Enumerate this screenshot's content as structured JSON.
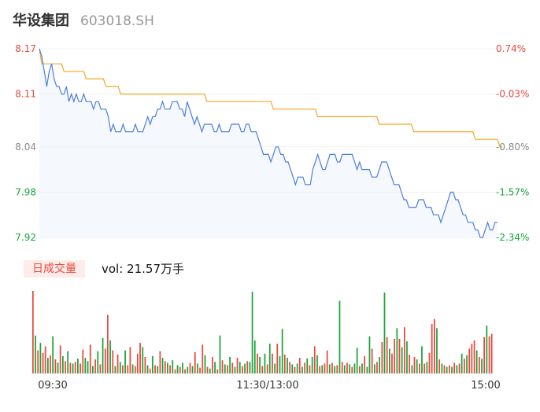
{
  "header": {
    "stock_name": "华设集团",
    "stock_code": "603018.SH"
  },
  "volume_panel": {
    "tab_label": "日成交量",
    "readout": "vol: 21.57万手"
  },
  "colors": {
    "price_line": "#4a7fe0",
    "avg_line": "#f5a623",
    "up": "#e8483b",
    "down": "#1aa33a",
    "area_fill": "#eef3fb"
  },
  "chart_data": {
    "type": "line",
    "prev_close": 8.11,
    "y_ticks": [
      "8.17",
      "8.11",
      "8.04",
      "7.98",
      "7.92"
    ],
    "y_tick_values": [
      8.17,
      8.11,
      8.04,
      7.98,
      7.92
    ],
    "pct_ticks": [
      "0.74%",
      "-0.03%",
      "-0.80%",
      "-1.57%",
      "-2.34%"
    ],
    "x_ticks": [
      "09:30",
      "11:30/13:00",
      "15:00"
    ],
    "ylim": [
      7.92,
      8.17
    ],
    "series": [
      {
        "values": [
          8.17,
          8.16,
          8.14,
          8.12,
          8.14,
          8.15,
          8.13,
          8.12,
          8.12,
          8.11,
          8.11,
          8.12,
          8.1,
          8.11,
          8.1,
          8.11,
          8.1,
          8.1,
          8.11,
          8.1,
          8.1,
          8.1,
          8.09,
          8.1,
          8.1,
          8.09,
          8.09,
          8.09,
          8.08,
          8.06,
          8.07,
          8.06,
          8.06,
          8.06,
          8.07,
          8.06,
          8.06,
          8.06,
          8.06,
          8.07,
          8.06,
          8.06,
          8.06,
          8.07,
          8.08,
          8.07,
          8.08,
          8.08,
          8.09,
          8.09,
          8.1,
          8.09,
          8.09,
          8.09,
          8.1,
          8.1,
          8.1,
          8.09,
          8.09,
          8.08,
          8.1,
          8.09,
          8.08,
          8.07,
          8.08,
          8.07,
          8.06,
          8.07,
          8.07,
          8.07,
          8.07,
          8.06,
          8.06,
          8.07,
          8.06,
          8.06,
          8.06,
          8.06,
          8.07,
          8.07,
          8.07,
          8.07,
          8.06,
          8.06,
          8.07,
          8.07,
          8.06,
          8.06,
          8.06,
          8.05,
          8.04,
          8.03,
          8.03,
          8.03,
          8.02,
          8.03,
          8.04,
          8.04,
          8.03,
          8.03,
          8.02,
          8.02,
          8.01,
          8.0,
          7.99,
          8.0,
          8.0,
          8.0,
          7.99,
          7.99,
          7.99,
          8.01,
          8.02,
          8.03,
          8.02,
          8.01,
          8.01,
          8.02,
          8.03,
          8.03,
          8.03,
          8.02,
          8.02,
          8.03,
          8.03,
          8.03,
          8.03,
          8.03,
          8.02,
          8.01,
          8.02,
          8.01,
          8.01,
          8.01,
          8.01,
          8.0,
          8.0,
          8.0,
          8.01,
          8.02,
          8.02,
          8.02,
          8.01,
          8.0,
          7.99,
          7.99,
          7.99,
          7.98,
          7.97,
          7.97,
          7.96,
          7.96,
          7.96,
          7.96,
          7.97,
          7.97,
          7.97,
          7.96,
          7.96,
          7.96,
          7.95,
          7.95,
          7.95,
          7.94,
          7.95,
          7.96,
          7.97,
          7.98,
          7.98,
          7.97,
          7.97,
          7.96,
          7.95,
          7.95,
          7.94,
          7.94,
          7.94,
          7.93,
          7.93,
          7.92,
          7.92,
          7.93,
          7.94,
          7.93,
          7.93,
          7.94,
          7.94
        ]
      },
      {
        "values": [
          8.17,
          8.15,
          8.15,
          8.15,
          8.15,
          8.15,
          8.15,
          8.15,
          8.15,
          8.15,
          8.14,
          8.14,
          8.14,
          8.14,
          8.14,
          8.14,
          8.14,
          8.14,
          8.14,
          8.13,
          8.13,
          8.13,
          8.13,
          8.13,
          8.13,
          8.13,
          8.13,
          8.12,
          8.12,
          8.12,
          8.12,
          8.12,
          8.12,
          8.11,
          8.11,
          8.11,
          8.11,
          8.11,
          8.11,
          8.11,
          8.11,
          8.11,
          8.11,
          8.11,
          8.11,
          8.11,
          8.11,
          8.11,
          8.11,
          8.11,
          8.11,
          8.11,
          8.11,
          8.11,
          8.11,
          8.11,
          8.11,
          8.11,
          8.11,
          8.11,
          8.11,
          8.11,
          8.11,
          8.11,
          8.11,
          8.11,
          8.11,
          8.11,
          8.1,
          8.1,
          8.1,
          8.1,
          8.1,
          8.1,
          8.1,
          8.1,
          8.1,
          8.1,
          8.1,
          8.1,
          8.1,
          8.1,
          8.1,
          8.1,
          8.1,
          8.1,
          8.1,
          8.1,
          8.1,
          8.1,
          8.1,
          8.1,
          8.1,
          8.1,
          8.1,
          8.09,
          8.09,
          8.09,
          8.09,
          8.09,
          8.09,
          8.09,
          8.09,
          8.09,
          8.09,
          8.09,
          8.09,
          8.09,
          8.09,
          8.09,
          8.09,
          8.09,
          8.09,
          8.08,
          8.08,
          8.08,
          8.08,
          8.08,
          8.08,
          8.08,
          8.08,
          8.08,
          8.08,
          8.08,
          8.08,
          8.08,
          8.08,
          8.08,
          8.08,
          8.08,
          8.08,
          8.08,
          8.08,
          8.08,
          8.08,
          8.08,
          8.08,
          8.08,
          8.07,
          8.07,
          8.07,
          8.07,
          8.07,
          8.07,
          8.07,
          8.07,
          8.07,
          8.07,
          8.07,
          8.07,
          8.07,
          8.07,
          8.06,
          8.06,
          8.06,
          8.06,
          8.06,
          8.06,
          8.06,
          8.06,
          8.06,
          8.06,
          8.06,
          8.06,
          8.06,
          8.06,
          8.06,
          8.06,
          8.06,
          8.06,
          8.06,
          8.06,
          8.06,
          8.06,
          8.06,
          8.06,
          8.06,
          8.05,
          8.05,
          8.05,
          8.05,
          8.05,
          8.05,
          8.05,
          8.05,
          8.05,
          8.05,
          8.04,
          8.04
        ]
      }
    ],
    "volume_bars": [
      {
        "v": 100,
        "up": true
      },
      {
        "v": 46,
        "up": false
      },
      {
        "v": 28,
        "up": true
      },
      {
        "v": 37,
        "up": false
      },
      {
        "v": 25,
        "up": true
      },
      {
        "v": 33,
        "up": true
      },
      {
        "v": 19,
        "up": false
      },
      {
        "v": 22,
        "up": true
      },
      {
        "v": 45,
        "up": false
      },
      {
        "v": 17,
        "up": true
      },
      {
        "v": 13,
        "up": false
      },
      {
        "v": 34,
        "up": true
      },
      {
        "v": 21,
        "up": false
      },
      {
        "v": 15,
        "up": true
      },
      {
        "v": 27,
        "up": false
      },
      {
        "v": 13,
        "up": true
      },
      {
        "v": 12,
        "up": false
      },
      {
        "v": 14,
        "up": true
      },
      {
        "v": 18,
        "up": false
      },
      {
        "v": 12,
        "up": true
      },
      {
        "v": 29,
        "up": true
      },
      {
        "v": 19,
        "up": false
      },
      {
        "v": 15,
        "up": false
      },
      {
        "v": 35,
        "up": true
      },
      {
        "v": 9,
        "up": false
      },
      {
        "v": 17,
        "up": true
      },
      {
        "v": 27,
        "up": false
      },
      {
        "v": 11,
        "up": true
      },
      {
        "v": 43,
        "up": false
      },
      {
        "v": 30,
        "up": true
      },
      {
        "v": 71,
        "up": true
      },
      {
        "v": 40,
        "up": false
      },
      {
        "v": 28,
        "up": true
      },
      {
        "v": 9,
        "up": false
      },
      {
        "v": 23,
        "up": true
      },
      {
        "v": 14,
        "up": false
      },
      {
        "v": 10,
        "up": true
      },
      {
        "v": 28,
        "up": false
      },
      {
        "v": 10,
        "up": true
      },
      {
        "v": 32,
        "up": true
      },
      {
        "v": 11,
        "up": false
      },
      {
        "v": 9,
        "up": true
      },
      {
        "v": 24,
        "up": true
      },
      {
        "v": 37,
        "up": true
      },
      {
        "v": 32,
        "up": false
      },
      {
        "v": 20,
        "up": true
      },
      {
        "v": 10,
        "up": false
      },
      {
        "v": 6,
        "up": true
      },
      {
        "v": 21,
        "up": false
      },
      {
        "v": 10,
        "up": true
      },
      {
        "v": 9,
        "up": false
      },
      {
        "v": 27,
        "up": true
      },
      {
        "v": 19,
        "up": false
      },
      {
        "v": 15,
        "up": true
      },
      {
        "v": 13,
        "up": false
      },
      {
        "v": 10,
        "up": true
      },
      {
        "v": 16,
        "up": false
      },
      {
        "v": 5,
        "up": true
      },
      {
        "v": 10,
        "up": false
      },
      {
        "v": 8,
        "up": true
      },
      {
        "v": 13,
        "up": false
      },
      {
        "v": 5,
        "up": true
      },
      {
        "v": 8,
        "up": false
      },
      {
        "v": 13,
        "up": true
      },
      {
        "v": 9,
        "up": false
      },
      {
        "v": 26,
        "up": true
      },
      {
        "v": 12,
        "up": false
      },
      {
        "v": 7,
        "up": true
      },
      {
        "v": 35,
        "up": true
      },
      {
        "v": 22,
        "up": false
      },
      {
        "v": 8,
        "up": true
      },
      {
        "v": 6,
        "up": false
      },
      {
        "v": 20,
        "up": true
      },
      {
        "v": 14,
        "up": false
      },
      {
        "v": 5,
        "up": true
      },
      {
        "v": 46,
        "up": false
      },
      {
        "v": 16,
        "up": true
      },
      {
        "v": 11,
        "up": false
      },
      {
        "v": 10,
        "up": true
      },
      {
        "v": 20,
        "up": false
      },
      {
        "v": 13,
        "up": true
      },
      {
        "v": 8,
        "up": false
      },
      {
        "v": 19,
        "up": true
      },
      {
        "v": 14,
        "up": false
      },
      {
        "v": 9,
        "up": true
      },
      {
        "v": 12,
        "up": false
      },
      {
        "v": 15,
        "up": true
      },
      {
        "v": 14,
        "up": false
      },
      {
        "v": 99,
        "up": false
      },
      {
        "v": 40,
        "up": false
      },
      {
        "v": 24,
        "up": true
      },
      {
        "v": 20,
        "up": false
      },
      {
        "v": 9,
        "up": true
      },
      {
        "v": 24,
        "up": false
      },
      {
        "v": 11,
        "up": true
      },
      {
        "v": 36,
        "up": false
      },
      {
        "v": 24,
        "up": true
      },
      {
        "v": 12,
        "up": false
      },
      {
        "v": 36,
        "up": true
      },
      {
        "v": 21,
        "up": false
      },
      {
        "v": 54,
        "up": false
      },
      {
        "v": 23,
        "up": true
      },
      {
        "v": 19,
        "up": false
      },
      {
        "v": 14,
        "up": true
      },
      {
        "v": 11,
        "up": false
      },
      {
        "v": 8,
        "up": true
      },
      {
        "v": 12,
        "up": false
      },
      {
        "v": 19,
        "up": true
      },
      {
        "v": 8,
        "up": false
      },
      {
        "v": 13,
        "up": true
      },
      {
        "v": 18,
        "up": false
      },
      {
        "v": 10,
        "up": true
      },
      {
        "v": 20,
        "up": false
      },
      {
        "v": 33,
        "up": true
      },
      {
        "v": 22,
        "up": false
      },
      {
        "v": 9,
        "up": true
      },
      {
        "v": 10,
        "up": false
      },
      {
        "v": 12,
        "up": true
      },
      {
        "v": 28,
        "up": true
      },
      {
        "v": 11,
        "up": false
      },
      {
        "v": 13,
        "up": true
      },
      {
        "v": 9,
        "up": false
      },
      {
        "v": 10,
        "up": true
      },
      {
        "v": 88,
        "up": false
      },
      {
        "v": 14,
        "up": true
      },
      {
        "v": 10,
        "up": false
      },
      {
        "v": 13,
        "up": true
      },
      {
        "v": 11,
        "up": false
      },
      {
        "v": 8,
        "up": true
      },
      {
        "v": 12,
        "up": false
      },
      {
        "v": 31,
        "up": false
      },
      {
        "v": 9,
        "up": true
      },
      {
        "v": 12,
        "up": false
      },
      {
        "v": 21,
        "up": true
      },
      {
        "v": 8,
        "up": false
      },
      {
        "v": 45,
        "up": false
      },
      {
        "v": 30,
        "up": true
      },
      {
        "v": 11,
        "up": false
      },
      {
        "v": 14,
        "up": true
      },
      {
        "v": 20,
        "up": false
      },
      {
        "v": 38,
        "up": true
      },
      {
        "v": 98,
        "up": false
      },
      {
        "v": 44,
        "up": true
      },
      {
        "v": 30,
        "up": false
      },
      {
        "v": 24,
        "up": true
      },
      {
        "v": 42,
        "up": true
      },
      {
        "v": 55,
        "up": false
      },
      {
        "v": 42,
        "up": true
      },
      {
        "v": 32,
        "up": false
      },
      {
        "v": 56,
        "up": true
      },
      {
        "v": 39,
        "up": false
      },
      {
        "v": 23,
        "up": true
      },
      {
        "v": 10,
        "up": false
      },
      {
        "v": 20,
        "up": true
      },
      {
        "v": 17,
        "up": false
      },
      {
        "v": 12,
        "up": true
      },
      {
        "v": 33,
        "up": false
      },
      {
        "v": 12,
        "up": true
      },
      {
        "v": 14,
        "up": false
      },
      {
        "v": 25,
        "up": true
      },
      {
        "v": 60,
        "up": true
      },
      {
        "v": 66,
        "up": true
      },
      {
        "v": 55,
        "up": false
      },
      {
        "v": 17,
        "up": true
      },
      {
        "v": 12,
        "up": false
      },
      {
        "v": 10,
        "up": true
      },
      {
        "v": 8,
        "up": false
      },
      {
        "v": 10,
        "up": true
      },
      {
        "v": 8,
        "up": false
      },
      {
        "v": 13,
        "up": true
      },
      {
        "v": 10,
        "up": false
      },
      {
        "v": 12,
        "up": true
      },
      {
        "v": 24,
        "up": false
      },
      {
        "v": 18,
        "up": true
      },
      {
        "v": 22,
        "up": false
      },
      {
        "v": 30,
        "up": true
      },
      {
        "v": 36,
        "up": true
      },
      {
        "v": 40,
        "up": true
      },
      {
        "v": 28,
        "up": false
      },
      {
        "v": 20,
        "up": true
      },
      {
        "v": 18,
        "up": false
      },
      {
        "v": 44,
        "up": true
      },
      {
        "v": 58,
        "up": false
      },
      {
        "v": 45,
        "up": true
      },
      {
        "v": 48,
        "up": true
      }
    ]
  }
}
